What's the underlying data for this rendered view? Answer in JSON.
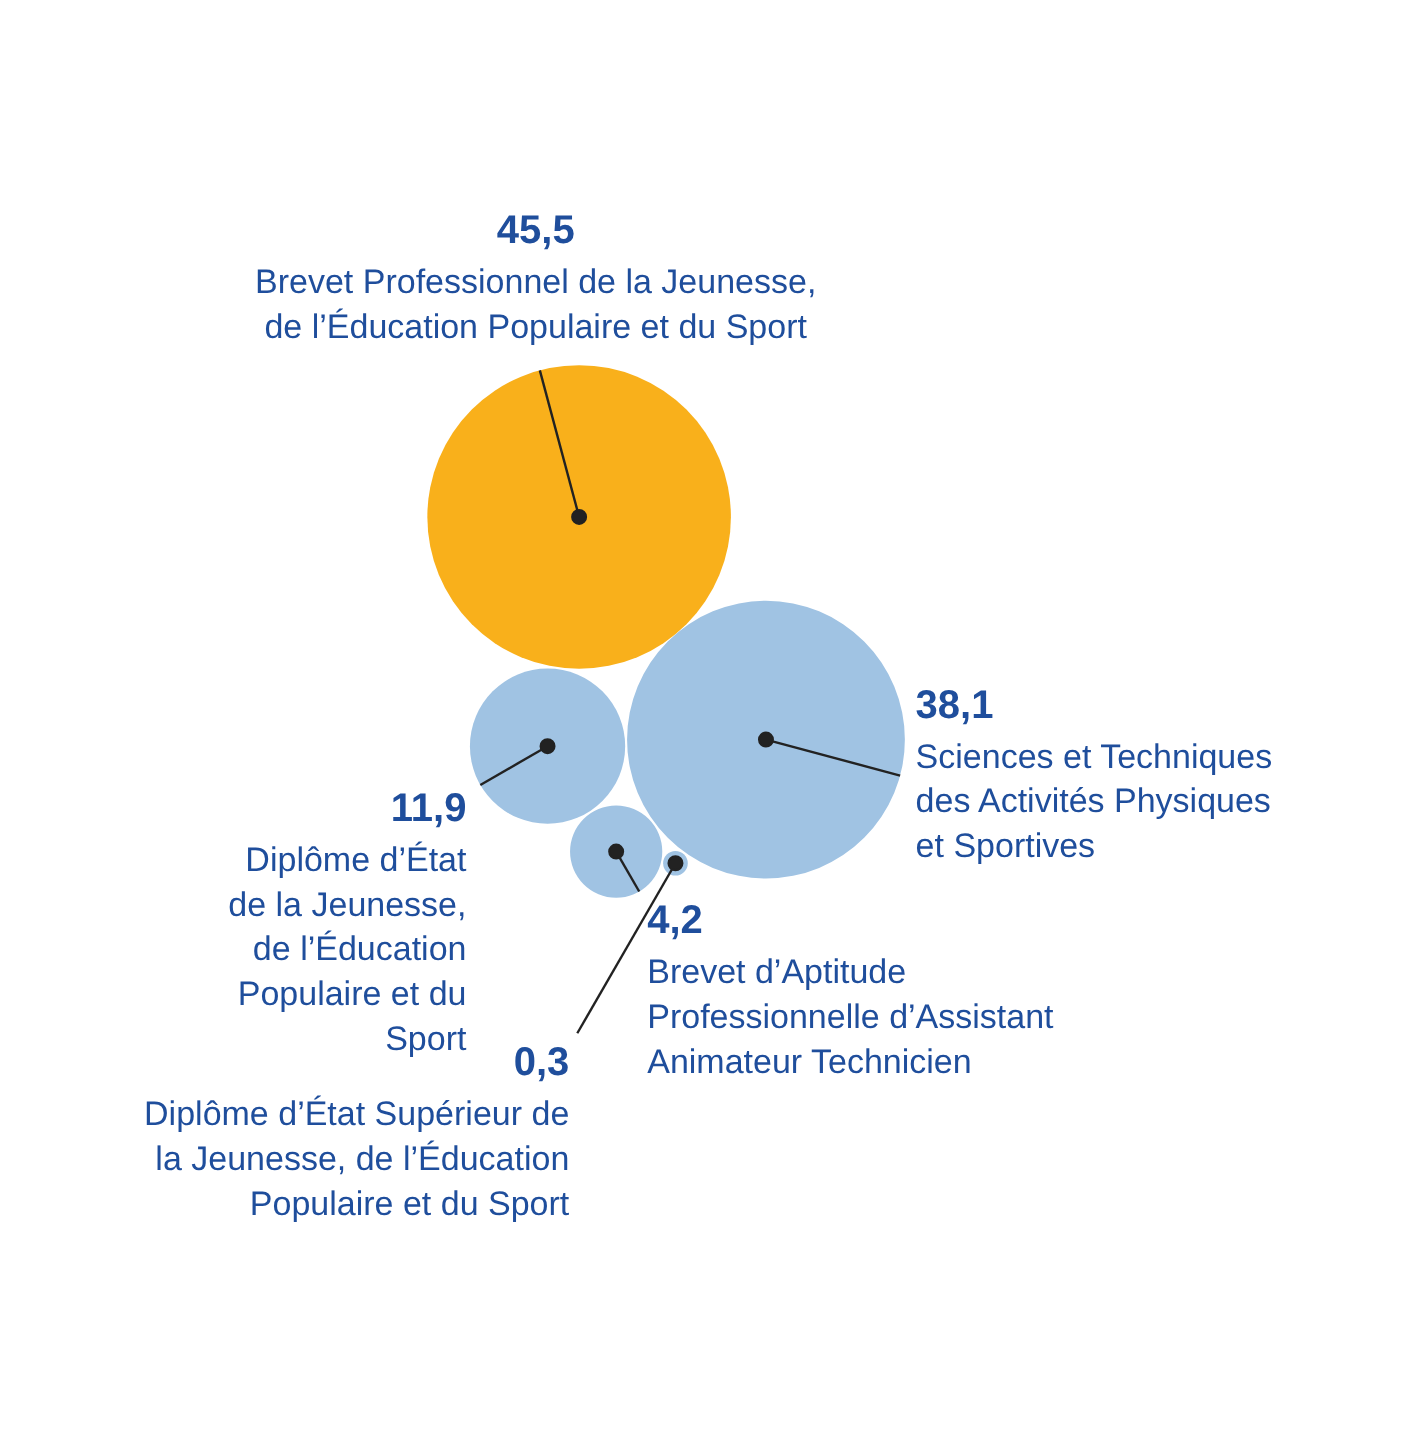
{
  "chart_data": {
    "type": "other",
    "categories": [
      "Brevet Professionnel de la Jeunesse,\nde l’Éducation Populaire et du Sport",
      "Sciences et Techniques\ndes Activités Physiques\net Sportives",
      "Diplôme d’État\nde la Jeunesse,\nde l’Éducation\nPopulaire et du\nSport",
      "Brevet d’Aptitude\nProfessionnelle d’Assistant\nAnimateur Technicien",
      "Diplôme d’État Supérieur de\nla Jeunesse, de l’Éducation\nPopulaire et du Sport"
    ],
    "values": [
      45.5,
      38.1,
      11.9,
      4.2,
      0.3
    ],
    "value_labels": [
      "45,5",
      "38,1",
      "11,9",
      "4,2",
      "0,3"
    ],
    "colors": [
      "#f9b01b",
      "#a0c3e3",
      "#a0c3e3",
      "#a0c3e3",
      "#a0c3e3"
    ]
  }
}
